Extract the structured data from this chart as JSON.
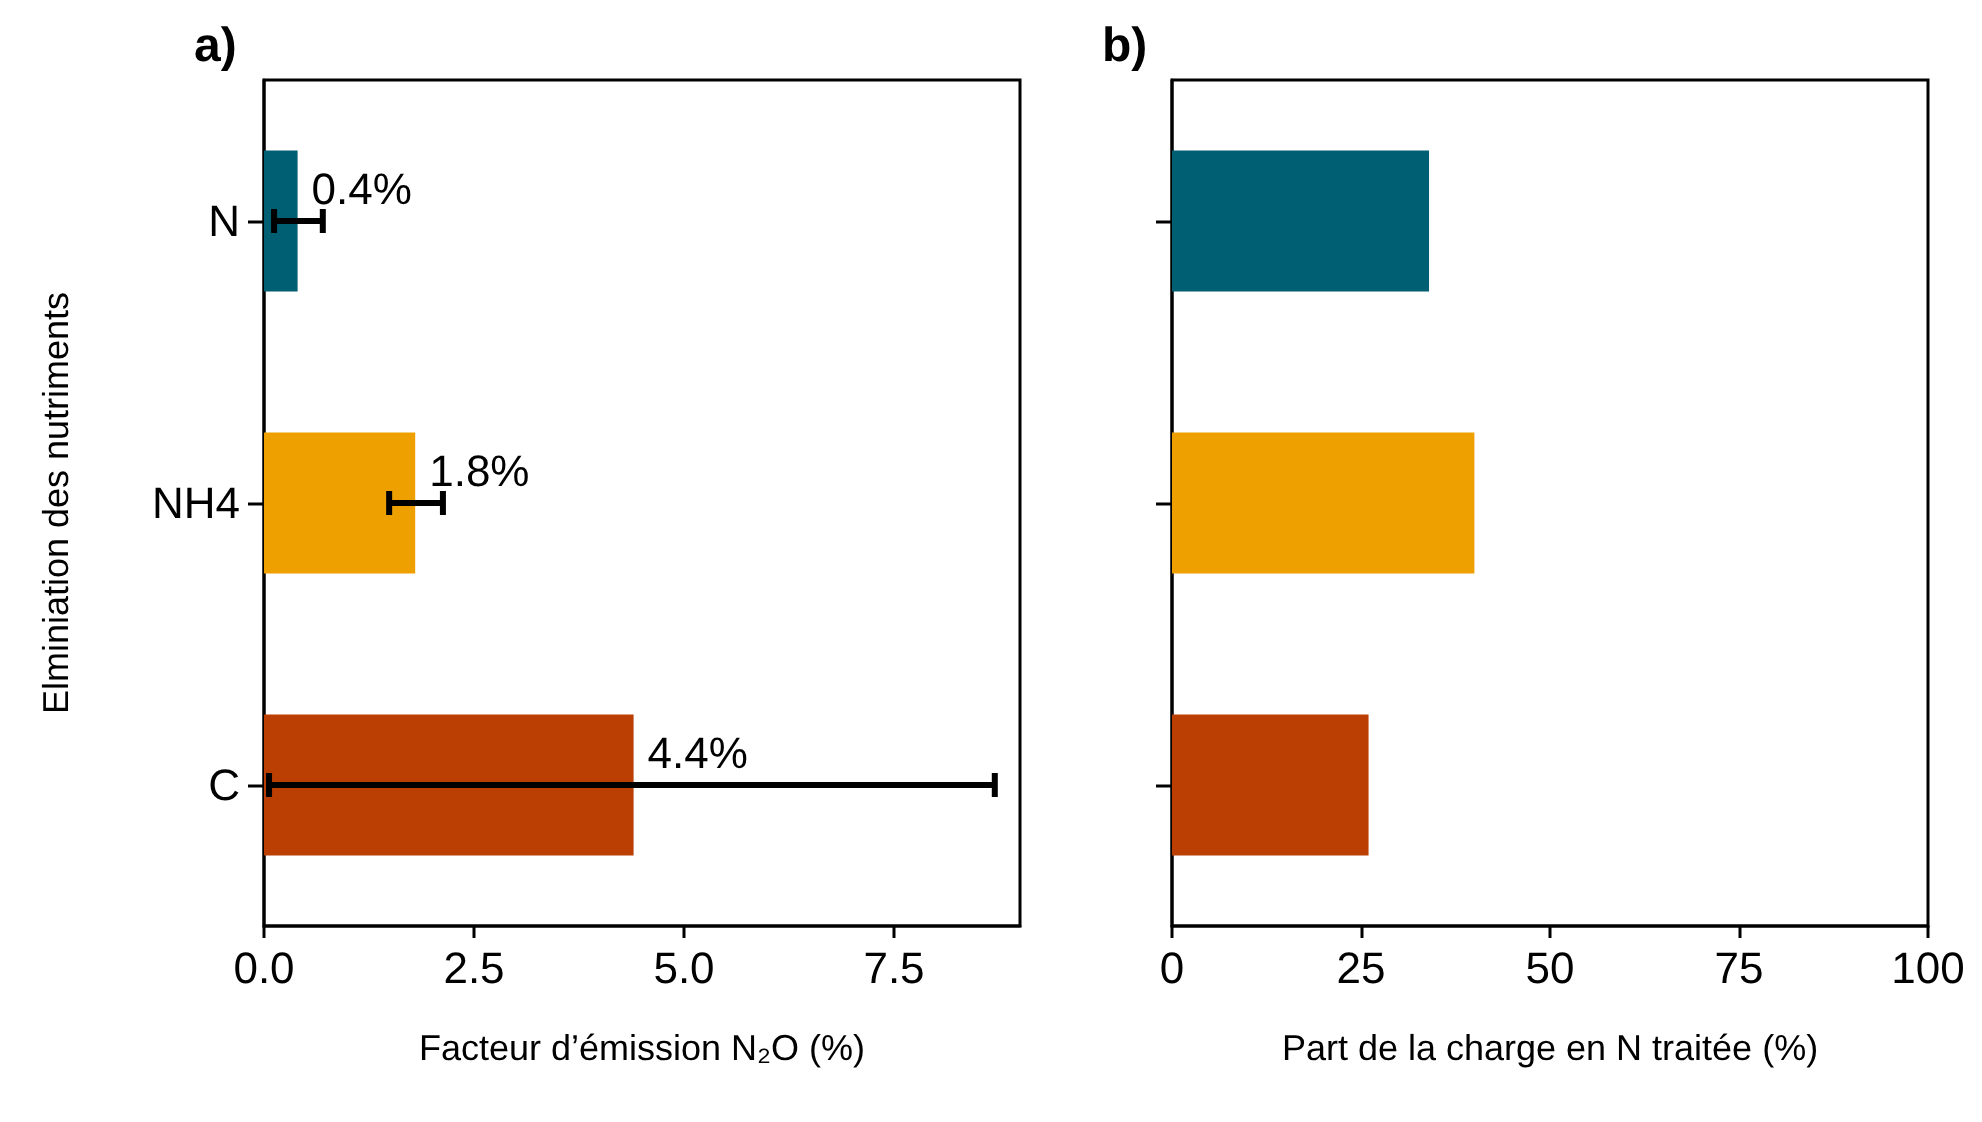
{
  "chart_data": [
    {
      "type": "bar",
      "orientation": "horizontal",
      "title": "a)",
      "xlabel": "Facteur d’émission N₂O (%)",
      "ylabel": "Elminiation des nutriments",
      "categories": [
        "N",
        "NH4",
        "C"
      ],
      "values": [
        0.4,
        1.8,
        4.4
      ],
      "colors": [
        "#015f73",
        "#eda000",
        "#bb3e03"
      ],
      "errors": [
        [
          0.12,
          0.7
        ],
        [
          1.49,
          2.13
        ],
        [
          0.06,
          8.7
        ]
      ],
      "value_labels": [
        "0.4%",
        "1.8%",
        "4.4%"
      ],
      "xlim": [
        0,
        9
      ],
      "xticks": [
        {
          "value": 0,
          "label": "0.0"
        },
        2.5,
        {
          "value": 5,
          "label": "5.0"
        },
        7.5
      ]
    },
    {
      "type": "bar",
      "orientation": "horizontal",
      "title": "b)",
      "xlabel": "Part de la charge en N traitée (%)",
      "categories": [
        null,
        null,
        null
      ],
      "values": [
        34,
        40,
        26
      ],
      "colors": [
        "#015f73",
        "#eda000",
        "#bb3e03"
      ],
      "xlim": [
        0,
        100
      ],
      "xticks": [
        0,
        25,
        50,
        75,
        100
      ]
    }
  ]
}
